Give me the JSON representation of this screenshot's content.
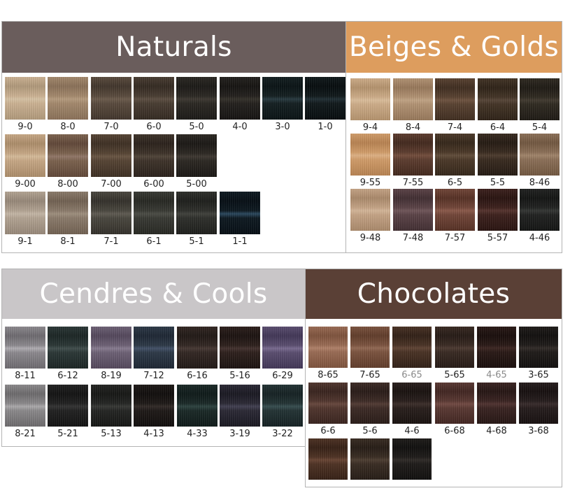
{
  "panels": [
    {
      "title": "Naturals",
      "header_color": "#6a5d5c",
      "rows": [
        [
          {
            "code": "9-0",
            "c": [
              "#cdb394",
              "#b19a7c",
              "#d8c4a6"
            ]
          },
          {
            "code": "8-0",
            "c": [
              "#a58a6e",
              "#8b725a",
              "#b79d80"
            ]
          },
          {
            "code": "7-0",
            "c": [
              "#5b4c3f",
              "#43372d",
              "#6d5d4e"
            ]
          },
          {
            "code": "6-0",
            "c": [
              "#4a3e33",
              "#352b23",
              "#5e5044"
            ]
          },
          {
            "code": "5-0",
            "c": [
              "#2c2924",
              "#1d1b18",
              "#3f3a33"
            ]
          },
          {
            "code": "4-0",
            "c": [
              "#25221f",
              "#171513",
              "#36322c"
            ]
          },
          {
            "code": "3-0",
            "c": [
              "#152022",
              "#0b1416",
              "#2a3c42"
            ]
          },
          {
            "code": "1-0",
            "c": [
              "#121a1c",
              "#080e10",
              "#223036"
            ]
          }
        ],
        [
          {
            "code": "9-00",
            "c": [
              "#c8a987",
              "#ad8e6c",
              "#d7bd9c"
            ]
          },
          {
            "code": "8-00",
            "c": [
              "#7d6450",
              "#62493a",
              "#93796a"
            ]
          },
          {
            "code": "7-00",
            "c": [
              "#574535",
              "#3f3125",
              "#6b5745"
            ]
          },
          {
            "code": "6-00",
            "c": [
              "#3f342b",
              "#2c231d",
              "#52463b"
            ]
          },
          {
            "code": "5-00",
            "c": [
              "#2d2924",
              "#1c1916",
              "#403a33"
            ]
          }
        ],
        [
          {
            "code": "9-1",
            "c": [
              "#b4a594",
              "#98897a",
              "#c6b8a8"
            ]
          },
          {
            "code": "8-1",
            "c": [
              "#8c7c6c",
              "#726253",
              "#a09180"
            ]
          },
          {
            "code": "7-1",
            "c": [
              "#4b4840",
              "#35322c",
              "#615d54"
            ]
          },
          {
            "code": "6-1",
            "c": [
              "#3a3b35",
              "#282924",
              "#4d4e47"
            ]
          },
          {
            "code": "5-1",
            "c": [
              "#2f302c",
              "#1f201d",
              "#42433e"
            ]
          },
          {
            "code": "1-1",
            "c": [
              "#0f1a22",
              "#081016",
              "#2d4a60"
            ]
          }
        ]
      ]
    },
    {
      "title": "Beiges & Golds",
      "header_color": "#dd9d5e",
      "rows": [
        [
          {
            "code": "9-4",
            "c": [
              "#cfae8a",
              "#b5946f",
              "#dcbf9d"
            ]
          },
          {
            "code": "8-4",
            "c": [
              "#b39475",
              "#98795c",
              "#c3a687"
            ]
          },
          {
            "code": "7-4",
            "c": [
              "#5a4332",
              "#412f22",
              "#705542"
            ]
          },
          {
            "code": "6-4",
            "c": [
              "#443527",
              "#302419",
              "#58473a"
            ]
          },
          {
            "code": "5-4",
            "c": [
              "#302b22",
              "#201c16",
              "#433c31"
            ]
          }
        ],
        [
          {
            "code": "9-55",
            "c": [
              "#d29e6b",
              "#b98453",
              "#e0b387"
            ]
          },
          {
            "code": "7-55",
            "c": [
              "#5e3e30",
              "#442a1f",
              "#76503f"
            ]
          },
          {
            "code": "6-5",
            "c": [
              "#4d3a2a",
              "#36281b",
              "#64503d"
            ]
          },
          {
            "code": "5-5",
            "c": [
              "#3a2c21",
              "#261c14",
              "#4f3e30"
            ]
          },
          {
            "code": "8-46",
            "c": [
              "#8d7159",
              "#735942",
              "#a3876d"
            ]
          }
        ],
        [
          {
            "code": "9-48",
            "c": [
              "#c6a587",
              "#ab8a6c",
              "#d6b89b"
            ]
          },
          {
            "code": "7-48",
            "c": [
              "#5c4448",
              "#433034",
              "#72585c"
            ]
          },
          {
            "code": "7-57",
            "c": [
              "#73473a",
              "#573226",
              "#8d5c4d"
            ]
          },
          {
            "code": "5-57",
            "c": [
              "#3e221e",
              "#2a1512",
              "#573530"
            ]
          },
          {
            "code": "4-46",
            "c": [
              "#222322",
              "#151615",
              "#363836"
            ]
          }
        ]
      ]
    },
    {
      "title": "Cendres & Cools",
      "header_color": "#c9c6c8",
      "rows": [
        [
          {
            "code": "8-11",
            "c": [
              "#8d8a8f",
              "#6f6c71",
              "#b3b0b5"
            ]
          },
          {
            "code": "6-12",
            "c": [
              "#2c3837",
              "#1d2726",
              "#43504f"
            ]
          },
          {
            "code": "8-19",
            "c": [
              "#6e6276",
              "#55495d",
              "#8a7e92"
            ]
          },
          {
            "code": "7-12",
            "c": [
              "#2e3a48",
              "#1f2835",
              "#45536a"
            ]
          },
          {
            "code": "6-16",
            "c": [
              "#332824",
              "#221a17",
              "#483a35"
            ]
          },
          {
            "code": "5-16",
            "c": [
              "#2e211d",
              "#1d1412",
              "#453330"
            ]
          },
          {
            "code": "6-29",
            "c": [
              "#5b4e70",
              "#433858",
              "#7b6d92"
            ]
          }
        ],
        [
          {
            "code": "8-21",
            "c": [
              "#8c8a8c",
              "#6e6c6e",
              "#aeacae"
            ]
          },
          {
            "code": "5-21",
            "c": [
              "#222222",
              "#141414",
              "#353535"
            ]
          },
          {
            "code": "5-13",
            "c": [
              "#252624",
              "#171816",
              "#393a37"
            ]
          },
          {
            "code": "4-13",
            "c": [
              "#1f1a18",
              "#120f0e",
              "#332c29"
            ]
          },
          {
            "code": "4-33",
            "c": [
              "#1b2a28",
              "#101b1a",
              "#2f4542"
            ]
          },
          {
            "code": "3-19",
            "c": [
              "#2c2a36",
              "#1b1a23",
              "#444254"
            ]
          },
          {
            "code": "3-22",
            "c": [
              "#243435",
              "#162224",
              "#395052"
            ]
          }
        ]
      ]
    },
    {
      "title": "Chocolates",
      "header_color": "#5a4036",
      "rows": [
        [
          {
            "code": "8-65",
            "c": [
              "#9a6c55",
              "#7f543e",
              "#b2836b"
            ]
          },
          {
            "code": "7-65",
            "c": [
              "#7c5440",
              "#623e2c",
              "#936a55"
            ]
          },
          {
            "code": "6-65",
            "dim": true,
            "c": [
              "#4a3326",
              "#332218",
              "#614536"
            ]
          },
          {
            "code": "5-65",
            "c": [
              "#3a2b24",
              "#271c17",
              "#4e3c33"
            ]
          },
          {
            "code": "4-65",
            "dim": true,
            "c": [
              "#2a1a17",
              "#1a0f0d",
              "#3e2824"
            ]
          },
          {
            "code": "3-65",
            "c": [
              "#201c1a",
              "#131110",
              "#332d2a"
            ]
          }
        ],
        [
          {
            "code": "6-6",
            "c": [
              "#52372f",
              "#3a2520",
              "#6a4a40"
            ]
          },
          {
            "code": "5-6",
            "c": [
              "#3e2c27",
              "#2a1d19",
              "#543d36"
            ]
          },
          {
            "code": "4-6",
            "c": [
              "#2a201d",
              "#1a1311",
              "#3e302c"
            ]
          },
          {
            "code": "6-68",
            "c": [
              "#5b3a34",
              "#432723",
              "#744c45"
            ]
          },
          {
            "code": "4-68",
            "c": [
              "#3b2523",
              "#271715",
              "#523532"
            ]
          },
          {
            "code": "3-68",
            "c": [
              "#271e1e",
              "#181111",
              "#3a2d2d"
            ]
          }
        ],
        [
          {
            "code": "",
            "c": [
              "#4f3325",
              "#372217",
              "#6a4635"
            ]
          },
          {
            "code": "",
            "c": [
              "#3a2d24",
              "#271e17",
              "#4f3f33"
            ]
          },
          {
            "code": "",
            "c": [
              "#1f1c1a",
              "#121110",
              "#302c29"
            ]
          }
        ]
      ]
    }
  ]
}
